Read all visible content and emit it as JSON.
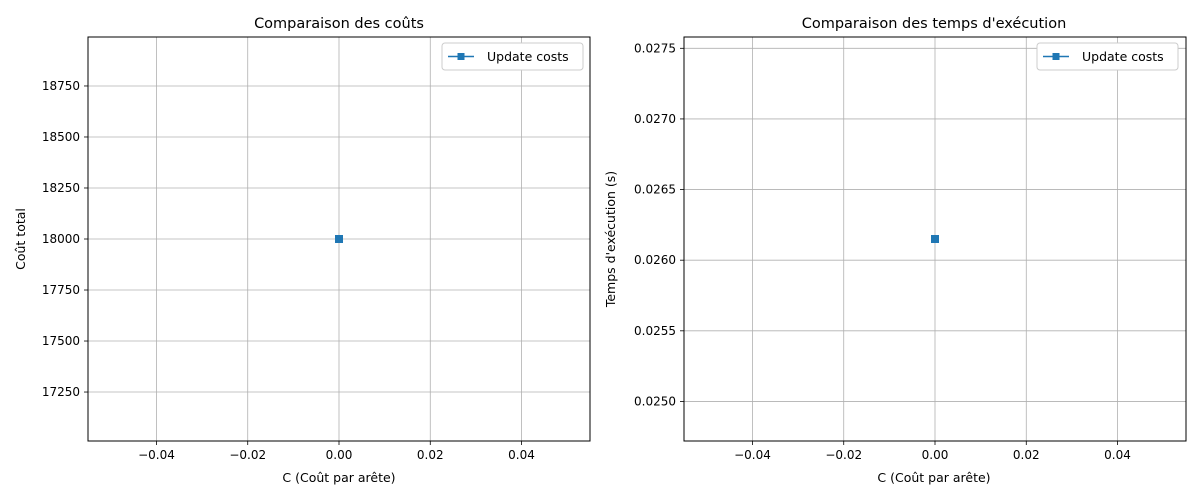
{
  "chart_data": [
    {
      "type": "line",
      "title": "Comparaison des coûts",
      "xlabel": "C (Coût par arête)",
      "ylabel": "Coût total",
      "xlim": [
        -0.055,
        0.055
      ],
      "ylim": [
        17010,
        18990
      ],
      "xticks": [
        -0.04,
        -0.02,
        0.0,
        0.02,
        0.04
      ],
      "xtick_labels": [
        "−0.04",
        "−0.02",
        "0.00",
        "0.02",
        "0.04"
      ],
      "yticks": [
        17250,
        17500,
        17750,
        18000,
        18250,
        18500,
        18750
      ],
      "ytick_labels": [
        "17250",
        "17500",
        "17750",
        "18000",
        "18250",
        "18500",
        "18750"
      ],
      "grid": true,
      "legend": "top-right",
      "series": [
        {
          "name": "Update costs",
          "marker": "square",
          "color": "#1f77b4",
          "x": [
            0.0
          ],
          "y": [
            18000
          ]
        }
      ]
    },
    {
      "type": "line",
      "title": "Comparaison des temps d'exécution",
      "xlabel": "C (Coût par arête)",
      "ylabel": "Temps d'exécution (s)",
      "xlim": [
        -0.055,
        0.055
      ],
      "ylim": [
        0.02472,
        0.02758
      ],
      "xticks": [
        -0.04,
        -0.02,
        0.0,
        0.02,
        0.04
      ],
      "xtick_labels": [
        "−0.04",
        "−0.02",
        "0.00",
        "0.02",
        "0.04"
      ],
      "yticks": [
        0.025,
        0.0255,
        0.026,
        0.0265,
        0.027,
        0.0275
      ],
      "ytick_labels": [
        "0.0250",
        "0.0255",
        "0.0260",
        "0.0265",
        "0.0270",
        "0.0275"
      ],
      "grid": true,
      "legend": "top-right",
      "series": [
        {
          "name": "Update costs",
          "marker": "square",
          "color": "#1f77b4",
          "x": [
            0.0
          ],
          "y": [
            0.02615
          ]
        }
      ]
    }
  ]
}
